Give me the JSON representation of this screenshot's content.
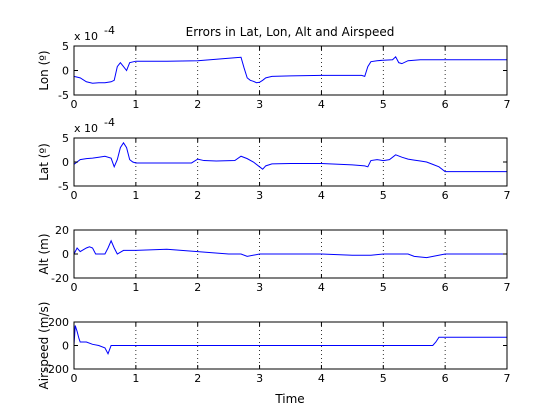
{
  "chart_data": {
    "type": "line",
    "title": "Errors in Lat, Lon, Alt and Airspeed",
    "xlabel": "Time",
    "xlim": [
      0,
      7
    ],
    "x_ticks": [
      0,
      1,
      2,
      3,
      4,
      5,
      6,
      7
    ],
    "x_tick_labels": [
      "0",
      "1",
      "2",
      "3",
      "4",
      "5",
      "6",
      "7"
    ],
    "grid": "vertical dotted",
    "line_color": "#0000ff",
    "subplots": [
      {
        "ylabel": "Lon (º)",
        "ylim": [
          -5,
          5
        ],
        "y_ticks": [
          -5,
          0,
          5
        ],
        "y_tick_labels": [
          "-5",
          "0",
          "5"
        ],
        "exponent_label": "x 10",
        "exponent": "-4",
        "x": [
          0,
          0.1,
          0.2,
          0.3,
          0.4,
          0.5,
          0.6,
          0.65,
          0.7,
          0.75,
          0.8,
          0.85,
          0.9,
          1.0,
          1.2,
          1.5,
          2.0,
          2.3,
          2.6,
          2.7,
          2.75,
          2.8,
          2.85,
          2.9,
          2.95,
          3.0,
          3.05,
          3.1,
          3.2,
          3.5,
          4.0,
          4.5,
          4.65,
          4.7,
          4.75,
          4.8,
          4.9,
          5.0,
          5.15,
          5.2,
          5.25,
          5.3,
          5.4,
          5.6,
          6.0,
          6.5,
          7.0
        ],
        "y": [
          -1.2,
          -1.5,
          -2.3,
          -2.6,
          -2.5,
          -2.5,
          -2.3,
          -2.0,
          0.8,
          1.6,
          0.8,
          0.0,
          1.6,
          1.9,
          1.9,
          1.9,
          2.0,
          2.3,
          2.6,
          2.7,
          0.5,
          -1.5,
          -2.0,
          -2.2,
          -2.5,
          -2.4,
          -2.0,
          -1.5,
          -1.2,
          -1.1,
          -1.0,
          -1.0,
          -1.0,
          -1.2,
          0.8,
          1.8,
          2.0,
          2.1,
          2.2,
          2.8,
          1.6,
          1.4,
          2.0,
          2.2,
          2.2,
          2.2,
          2.2
        ]
      },
      {
        "ylabel": "Lat (º)",
        "ylim": [
          -5,
          5
        ],
        "y_ticks": [
          -5,
          0,
          5
        ],
        "y_tick_labels": [
          "-5",
          "0",
          "5"
        ],
        "exponent_label": "x 10",
        "exponent": "-4",
        "x": [
          0,
          0.05,
          0.1,
          0.2,
          0.3,
          0.4,
          0.5,
          0.6,
          0.65,
          0.7,
          0.75,
          0.8,
          0.85,
          0.9,
          0.95,
          1.0,
          1.2,
          1.5,
          1.9,
          2.0,
          2.1,
          2.3,
          2.6,
          2.7,
          2.8,
          2.9,
          3.0,
          3.05,
          3.1,
          3.2,
          3.5,
          4.0,
          4.5,
          4.7,
          4.75,
          4.8,
          4.9,
          5.0,
          5.1,
          5.2,
          5.3,
          5.4,
          5.5,
          5.6,
          5.7,
          5.8,
          5.9,
          6.0,
          6.5,
          7.0
        ],
        "y": [
          -0.5,
          0.0,
          0.5,
          0.7,
          0.8,
          1.0,
          1.2,
          0.8,
          -1.0,
          0.5,
          3.0,
          4.0,
          3.0,
          0.5,
          0.0,
          -0.2,
          -0.2,
          -0.2,
          -0.2,
          0.6,
          0.3,
          0.2,
          0.3,
          1.2,
          0.7,
          0.0,
          -1.0,
          -1.5,
          -0.8,
          -0.4,
          -0.3,
          -0.3,
          -0.6,
          -0.8,
          -1.0,
          0.3,
          0.5,
          0.3,
          0.5,
          1.5,
          1.0,
          0.6,
          0.4,
          0.2,
          0.0,
          -0.5,
          -1.0,
          -2.0,
          -2.0,
          -2.0
        ]
      },
      {
        "ylabel": "Alt (m)",
        "ylim": [
          -20,
          20
        ],
        "y_ticks": [
          -20,
          0,
          20
        ],
        "y_tick_labels": [
          "-20",
          "0",
          "20"
        ],
        "x": [
          0,
          0.05,
          0.1,
          0.2,
          0.25,
          0.3,
          0.35,
          0.4,
          0.5,
          0.55,
          0.6,
          0.65,
          0.7,
          0.8,
          1.0,
          1.5,
          2.0,
          2.5,
          2.7,
          2.8,
          3.0,
          3.5,
          4.0,
          4.5,
          4.8,
          5.0,
          5.3,
          5.4,
          5.5,
          5.7,
          6.0,
          6.5,
          7.0
        ],
        "y": [
          0,
          5,
          2,
          5,
          6,
          5,
          0,
          0,
          0,
          5,
          11,
          5,
          0,
          3,
          3,
          4,
          2,
          0,
          0,
          -2,
          0,
          0,
          0,
          -1,
          -1,
          0,
          0,
          0,
          -2,
          -3,
          0,
          0,
          0
        ]
      },
      {
        "ylabel": "Airspeed (m/s)",
        "ylim": [
          -200,
          200
        ],
        "y_ticks": [
          -200,
          0,
          200
        ],
        "y_tick_labels": [
          "-200",
          "0",
          "200"
        ],
        "x": [
          0,
          0.02,
          0.05,
          0.08,
          0.1,
          0.2,
          0.3,
          0.4,
          0.5,
          0.55,
          0.6,
          0.7,
          1.0,
          1.5,
          2.0,
          3.0,
          4.0,
          5.0,
          5.8,
          5.85,
          5.9,
          6.0,
          6.5,
          7.0
        ],
        "y": [
          0,
          170,
          120,
          60,
          30,
          30,
          10,
          0,
          -20,
          -70,
          0,
          0,
          0,
          0,
          0,
          0,
          0,
          0,
          0,
          30,
          70,
          70,
          70,
          70
        ]
      }
    ]
  }
}
